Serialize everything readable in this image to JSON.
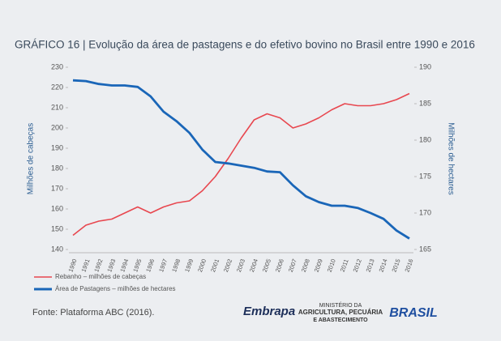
{
  "chart_data": {
    "type": "line",
    "title": "GRÁFICO 16 | Evolução da área de pastagens e do efetivo bovino no Brasil entre 1990 e 2016",
    "categories": [
      "1990",
      "1991",
      "1992",
      "1993",
      "1994",
      "1995",
      "1996",
      "1997",
      "1998",
      "1999",
      "2000",
      "2001",
      "2002",
      "2003",
      "2004",
      "2005",
      "2006",
      "2007",
      "2008",
      "2009",
      "2010",
      "2011",
      "2012",
      "2013",
      "2014",
      "2015",
      "2016"
    ],
    "ylabel": "Milhões de cabeças",
    "y2label": "Milhões de hectares",
    "ylim": [
      140,
      230
    ],
    "yticks": [
      140,
      150,
      160,
      170,
      180,
      190,
      200,
      210,
      220,
      230
    ],
    "y2lim": [
      165,
      190
    ],
    "y2ticks": [
      165,
      170,
      175,
      180,
      185,
      190
    ],
    "grid": false,
    "legend": "bottom-left",
    "series": [
      {
        "name": "Rebanho – milhões de cabeças",
        "color": "#e8474f",
        "values": [
          147,
          152,
          154,
          155,
          158,
          161,
          158,
          161,
          163,
          164,
          169,
          176,
          185,
          195,
          204,
          207,
          205,
          200,
          202,
          205,
          209,
          212,
          211,
          211,
          212,
          214,
          217
        ]
      },
      {
        "name": "Área de Pastagens – milhões de hectares",
        "color": "#1a66b8",
        "axis": "y2",
        "values": [
          188.2,
          188.1,
          187.7,
          187.5,
          187.5,
          187.3,
          186,
          183.9,
          182.6,
          181,
          178.7,
          177,
          176.8,
          176.5,
          176.2,
          175.7,
          175.6,
          173.8,
          172.3,
          171.5,
          171,
          171,
          170.7,
          170,
          169.2,
          167.6,
          166.5
        ]
      }
    ],
    "source": "Fonte: Plataforma ABC (2016).",
    "logos": [
      "Embrapa",
      "MINISTÉRIO DA",
      "AGRICULTURA, PECUÁRIA",
      "E ABASTECIMENTO",
      "BRASIL"
    ]
  }
}
